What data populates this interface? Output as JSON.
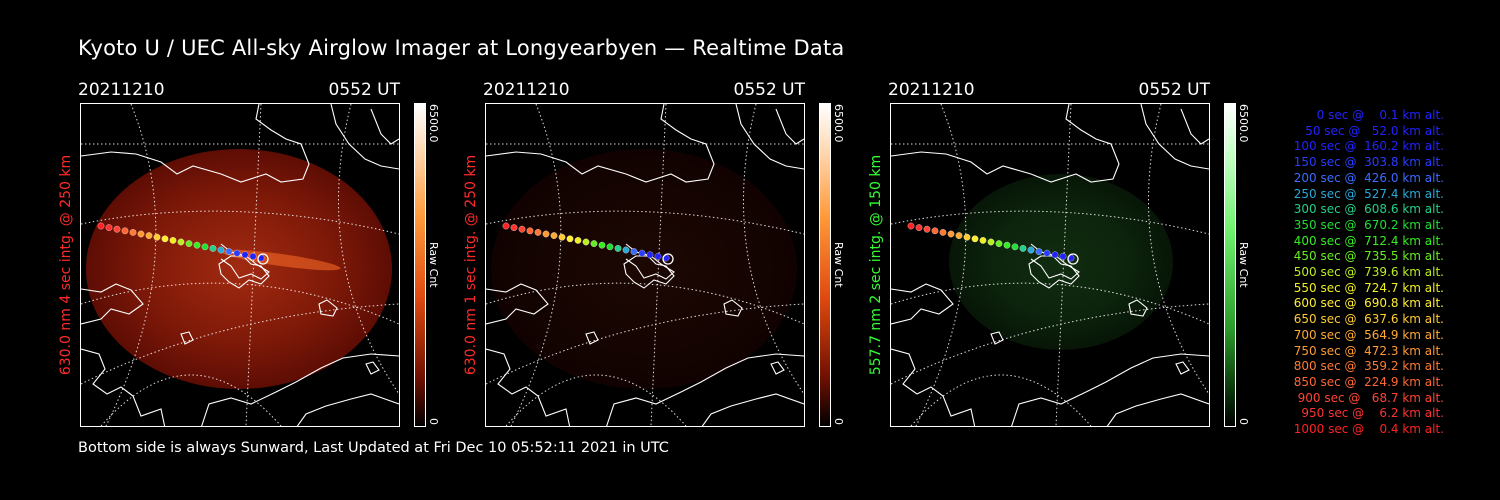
{
  "title": "Kyoto U / UEC All-sky Airglow Imager at Longyearbyen — Realtime Data",
  "footer": "Bottom side is always Sunward, Last Updated at Fri Dec 10 05:52:11 2021 in UTC",
  "panels": [
    {
      "date": "20211210",
      "time": "0552 UT",
      "ylabel": "630.0 nm 4 sec intg. @ 250 km",
      "label_color": "#ff2a2a",
      "cbar_max": "6500.0",
      "cbar_min": "0",
      "cbar_unit": "Raw Cnt",
      "brightness": 0.85,
      "tint": "red"
    },
    {
      "date": "20211210",
      "time": "0552 UT",
      "ylabel": "630.0 nm 1 sec intg. @ 250 km",
      "label_color": "#ff2a2a",
      "cbar_max": "6500.0",
      "cbar_min": "0",
      "cbar_unit": "Raw Cnt",
      "brightness": 0.15,
      "tint": "red"
    },
    {
      "date": "20211210",
      "time": "0552 UT",
      "ylabel": "557.7 nm 2 sec intg. @ 150 km",
      "label_color": "#33ff33",
      "cbar_max": "6500.0",
      "cbar_min": "0",
      "cbar_unit": "Raw Cnt",
      "brightness": 0.4,
      "tint": "green"
    }
  ],
  "legend": [
    {
      "sec": "0",
      "alt": "0.1",
      "color": "#2222ff"
    },
    {
      "sec": "50",
      "alt": "52.0",
      "color": "#2222ff"
    },
    {
      "sec": "100",
      "alt": "160.2",
      "color": "#2222ff"
    },
    {
      "sec": "150",
      "alt": "303.8",
      "color": "#2a3cff"
    },
    {
      "sec": "200",
      "alt": "426.0",
      "color": "#3a6cff"
    },
    {
      "sec": "250",
      "alt": "527.4",
      "color": "#2aa8d8"
    },
    {
      "sec": "300",
      "alt": "608.6",
      "color": "#22d08a"
    },
    {
      "sec": "350",
      "alt": "670.2",
      "color": "#22dd33"
    },
    {
      "sec": "400",
      "alt": "712.4",
      "color": "#33ee22"
    },
    {
      "sec": "450",
      "alt": "735.5",
      "color": "#66ee22"
    },
    {
      "sec": "500",
      "alt": "739.6",
      "color": "#bbee22"
    },
    {
      "sec": "550",
      "alt": "724.7",
      "color": "#eeee22"
    },
    {
      "sec": "600",
      "alt": "690.8",
      "color": "#ffee33"
    },
    {
      "sec": "650",
      "alt": "637.6",
      "color": "#ffcc33"
    },
    {
      "sec": "700",
      "alt": "564.9",
      "color": "#ffaa33"
    },
    {
      "sec": "750",
      "alt": "472.3",
      "color": "#ff9933"
    },
    {
      "sec": "800",
      "alt": "359.2",
      "color": "#ff7a33"
    },
    {
      "sec": "850",
      "alt": "224.9",
      "color": "#ff6633"
    },
    {
      "sec": "900",
      "alt": "68.7",
      "color": "#ff4433"
    },
    {
      "sec": "950",
      "alt": "6.2",
      "color": "#ff3333"
    },
    {
      "sec": "1000",
      "alt": "0.4",
      "color": "#ff2222"
    }
  ]
}
